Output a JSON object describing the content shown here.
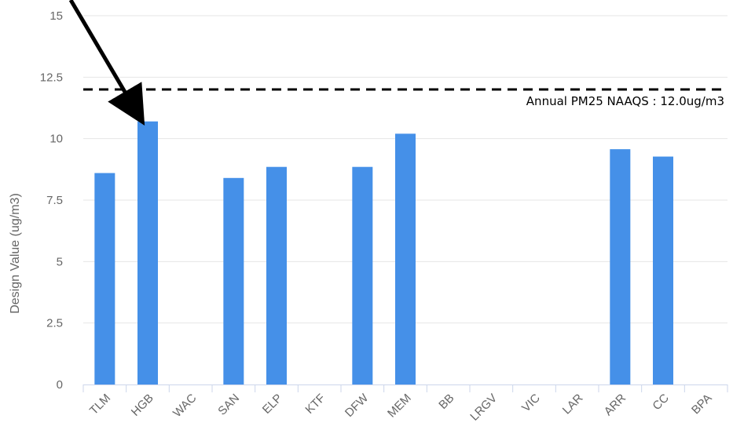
{
  "chart_data": {
    "type": "bar",
    "title": "",
    "xlabel": "",
    "ylabel": "Design Value (ug/m3)",
    "categories": [
      "TLM",
      "HGB",
      "WAC",
      "SAN",
      "ELP",
      "KTF",
      "DFW",
      "MEM",
      "BB",
      "LRGV",
      "VIC",
      "LAR",
      "ARR",
      "CC",
      "BPA"
    ],
    "values": [
      8.6,
      10.7,
      null,
      8.4,
      8.85,
      null,
      8.85,
      10.2,
      null,
      null,
      null,
      null,
      9.57,
      9.27,
      null
    ],
    "ylim": [
      0,
      15
    ],
    "yticks": [
      "0",
      "2.5",
      "5",
      "7.5",
      "10",
      "12.5",
      "15"
    ],
    "bar_color": "#4590e8",
    "grid": true,
    "reference_line": {
      "value": 12.0,
      "label": "Annual PM25 NAAQS : 12.0ug/m3",
      "style": "dashed",
      "color": "#000000"
    },
    "annotation": {
      "type": "arrow",
      "target_category": "HGB",
      "color": "#000000"
    }
  }
}
